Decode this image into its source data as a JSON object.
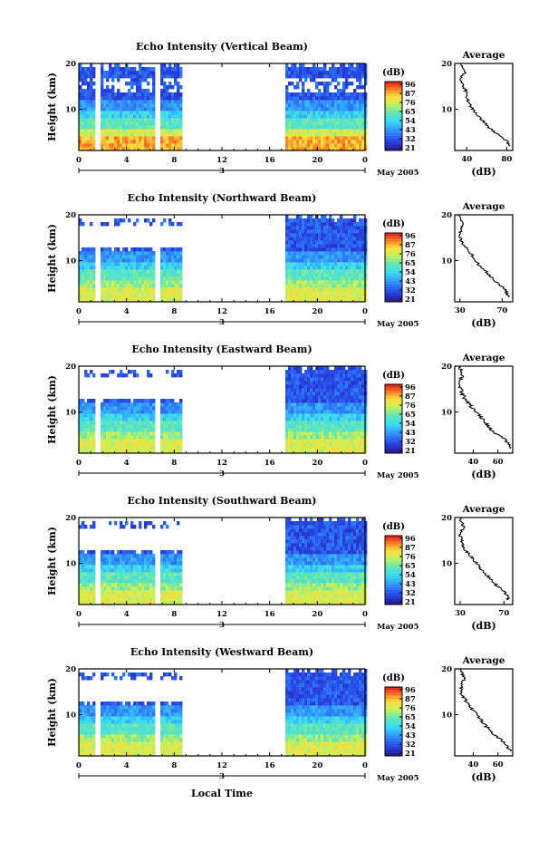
{
  "figure": {
    "xlabel": "Local Time",
    "date_label": "May 2005",
    "day_label": "3",
    "colorbar_unit": "(dB)",
    "colorbar_ticks": [
      "96",
      "87",
      "76",
      "65",
      "54",
      "43",
      "32",
      "21"
    ],
    "average_title": "Average",
    "average_xlabel": "(dB)",
    "ylabel": "Height (km)"
  },
  "chart_data": [
    {
      "type": "heatmap",
      "title": "Echo Intensity (Vertical Beam)",
      "ylabel": "Height (km)",
      "xlabel": "Local Time",
      "x_ticks": [
        "0",
        "4",
        "8",
        "12",
        "16",
        "20",
        "0"
      ],
      "xlim": [
        0,
        24
      ],
      "ylim": [
        1,
        20
      ],
      "y_ticks": [
        "10",
        "20"
      ],
      "color_range_db": [
        21,
        96
      ],
      "data_gaps_hours": [
        [
          1.3,
          1.9
        ],
        [
          6.3,
          6.8
        ],
        [
          8.7,
          17.3
        ]
      ],
      "profile": {
        "title": "Average",
        "xlabel": "(dB)",
        "x_ticks": [
          "40",
          "80"
        ],
        "xlim": [
          28,
          86
        ],
        "height_km": [
          2,
          3,
          4,
          5,
          6,
          7,
          8,
          9,
          10,
          11,
          12,
          13,
          14,
          15,
          16,
          17,
          18,
          19,
          20
        ],
        "db": [
          82,
          80,
          75,
          68,
          62,
          58,
          54,
          50,
          46,
          43,
          41,
          40,
          39,
          37,
          35,
          34,
          38,
          37,
          34
        ]
      }
    },
    {
      "type": "heatmap",
      "title": "Echo Intensity (Northward Beam)",
      "ylabel": "Height (km)",
      "xlabel": "Local Time",
      "x_ticks": [
        "0",
        "4",
        "8",
        "12",
        "16",
        "20",
        "0"
      ],
      "xlim": [
        0,
        24
      ],
      "ylim": [
        1,
        20
      ],
      "y_ticks": [
        "10",
        "20"
      ],
      "color_range_db": [
        21,
        96
      ],
      "data_gaps_hours": [
        [
          1.3,
          1.9
        ],
        [
          6.3,
          6.8
        ],
        [
          8.7,
          17.3
        ]
      ],
      "profile": {
        "title": "Average",
        "xlabel": "(dB)",
        "x_ticks": [
          "30",
          "70"
        ],
        "xlim": [
          25,
          80
        ],
        "height_km": [
          2,
          3,
          4,
          5,
          6,
          7,
          8,
          9,
          10,
          11,
          12,
          13,
          14,
          15,
          16,
          17,
          18,
          19,
          20
        ],
        "db": [
          76,
          74,
          72,
          66,
          61,
          57,
          53,
          48,
          45,
          42,
          39,
          35,
          32,
          30,
          30,
          31,
          32,
          31,
          30
        ]
      }
    },
    {
      "type": "heatmap",
      "title": "Echo Intensity (Eastward Beam)",
      "ylabel": "Height (km)",
      "xlabel": "Local Time",
      "x_ticks": [
        "0",
        "4",
        "8",
        "12",
        "16",
        "20",
        "0"
      ],
      "xlim": [
        0,
        24
      ],
      "ylim": [
        1,
        20
      ],
      "y_ticks": [
        "10",
        "20"
      ],
      "color_range_db": [
        21,
        96
      ],
      "data_gaps_hours": [
        [
          1.3,
          1.9
        ],
        [
          6.3,
          6.8
        ],
        [
          8.7,
          17.3
        ]
      ],
      "profile": {
        "title": "Average",
        "xlabel": "(dB)",
        "x_ticks": [
          "40",
          "60"
        ],
        "xlim": [
          25,
          72
        ],
        "height_km": [
          2,
          3,
          4,
          5,
          6,
          7,
          8,
          9,
          10,
          11,
          12,
          13,
          14,
          15,
          16,
          17,
          18,
          19,
          20
        ],
        "db": [
          70,
          69,
          66,
          60,
          55,
          52,
          49,
          46,
          42,
          39,
          36,
          33,
          31,
          30,
          29,
          30,
          31,
          30,
          29
        ]
      }
    },
    {
      "type": "heatmap",
      "title": "Echo Intensity (Southward Beam)",
      "ylabel": "Height (km)",
      "xlabel": "Local Time",
      "x_ticks": [
        "0",
        "4",
        "8",
        "12",
        "16",
        "20",
        "0"
      ],
      "xlim": [
        0,
        24
      ],
      "ylim": [
        1,
        20
      ],
      "y_ticks": [
        "10",
        "20"
      ],
      "color_range_db": [
        21,
        96
      ],
      "data_gaps_hours": [
        [
          1.3,
          1.9
        ],
        [
          6.3,
          6.8
        ],
        [
          8.7,
          17.3
        ]
      ],
      "profile": {
        "title": "Average",
        "xlabel": "(dB)",
        "x_ticks": [
          "30",
          "70"
        ],
        "xlim": [
          25,
          78
        ],
        "height_km": [
          2,
          3,
          4,
          5,
          6,
          7,
          8,
          9,
          10,
          11,
          12,
          13,
          14,
          15,
          16,
          17,
          18,
          19,
          20
        ],
        "db": [
          74,
          73,
          70,
          64,
          60,
          56,
          52,
          48,
          45,
          42,
          38,
          34,
          32,
          31,
          30,
          31,
          33,
          31,
          30
        ]
      }
    },
    {
      "type": "heatmap",
      "title": "Echo Intensity (Westward Beam)",
      "ylabel": "Height (km)",
      "xlabel": "Local Time",
      "x_ticks": [
        "0",
        "4",
        "8",
        "12",
        "16",
        "20",
        "0"
      ],
      "xlim": [
        0,
        24
      ],
      "ylim": [
        1,
        20
      ],
      "y_ticks": [
        "10",
        "20"
      ],
      "color_range_db": [
        21,
        96
      ],
      "data_gaps_hours": [
        [
          1.3,
          1.9
        ],
        [
          6.3,
          6.8
        ],
        [
          8.7,
          17.3
        ]
      ],
      "profile": {
        "title": "Average",
        "xlabel": "(dB)",
        "x_ticks": [
          "40",
          "60"
        ],
        "xlim": [
          25,
          72
        ],
        "height_km": [
          2,
          3,
          4,
          5,
          6,
          7,
          8,
          9,
          10,
          11,
          12,
          13,
          14,
          15,
          16,
          17,
          18,
          19,
          20
        ],
        "db": [
          70,
          68,
          65,
          60,
          55,
          52,
          49,
          46,
          43,
          40,
          37,
          34,
          31,
          30,
          30,
          31,
          33,
          31,
          30
        ]
      }
    }
  ]
}
